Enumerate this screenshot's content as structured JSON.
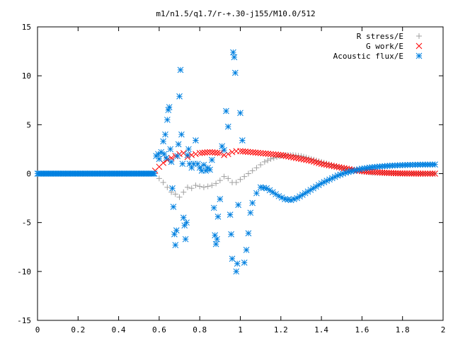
{
  "chart_data": {
    "type": "scatter",
    "title": "m1/n1.5/q1.7/r-+.30-j155/M10.0/512",
    "xlabel": "",
    "ylabel": "",
    "xlim": [
      0,
      2
    ],
    "ylim": [
      -15,
      15
    ],
    "xticks": [
      0,
      0.2,
      0.4,
      0.6,
      0.8,
      1,
      1.2,
      1.4,
      1.6,
      1.8,
      2
    ],
    "xtick_labels": [
      "0",
      "0.2",
      "0.4",
      "0.6",
      "0.8",
      "1",
      "1.2",
      "1.4",
      "1.6",
      "1.8",
      "2"
    ],
    "yticks": [
      -15,
      -10,
      -5,
      0,
      5,
      10,
      15
    ],
    "ytick_labels": [
      "-15",
      "-10",
      "-5",
      "0",
      "5",
      "10",
      "15"
    ],
    "grid": false,
    "legend_position": "top-right",
    "series": [
      {
        "name": "R stress/E",
        "color": "#a0a0a0",
        "marker": "plus",
        "points": [
          [
            0.6,
            -0.5
          ],
          [
            0.62,
            -0.9
          ],
          [
            0.64,
            -1.4
          ],
          [
            0.66,
            -1.9
          ],
          [
            0.68,
            -2.1
          ],
          [
            0.7,
            -2.4
          ],
          [
            0.72,
            -1.9
          ],
          [
            0.74,
            -1.4
          ],
          [
            0.76,
            -1.5
          ],
          [
            0.78,
            -1.2
          ],
          [
            0.8,
            -1.3
          ],
          [
            0.82,
            -1.4
          ],
          [
            0.84,
            -1.3
          ],
          [
            0.86,
            -1.2
          ],
          [
            0.88,
            -1.0
          ],
          [
            0.9,
            -0.7
          ],
          [
            0.92,
            -0.3
          ],
          [
            0.94,
            -0.5
          ],
          [
            0.96,
            -0.9
          ],
          [
            0.98,
            -0.9
          ],
          [
            1.0,
            -0.6
          ],
          [
            1.02,
            -0.3
          ],
          [
            1.04,
            0.0
          ],
          [
            1.06,
            0.3
          ],
          [
            1.08,
            0.6
          ],
          [
            1.1,
            0.9
          ],
          [
            1.12,
            1.2
          ],
          [
            1.15,
            1.5
          ],
          [
            1.18,
            1.7
          ],
          [
            1.22,
            1.9
          ],
          [
            1.26,
            1.9
          ],
          [
            1.3,
            1.8
          ],
          [
            1.35,
            1.5
          ],
          [
            1.4,
            1.2
          ],
          [
            1.45,
            0.9
          ],
          [
            1.5,
            0.6
          ],
          [
            1.55,
            0.4
          ],
          [
            1.6,
            0.2
          ],
          [
            1.65,
            0.1
          ],
          [
            1.7,
            0.05
          ],
          [
            1.8,
            0.0
          ],
          [
            1.9,
            0.0
          ],
          [
            1.96,
            0.0
          ]
        ]
      },
      {
        "name": "G work/E",
        "color": "#ff0000",
        "marker": "cross",
        "points": [
          [
            0.58,
            0.3
          ],
          [
            0.6,
            0.7
          ],
          [
            0.62,
            1.1
          ],
          [
            0.64,
            1.4
          ],
          [
            0.66,
            1.6
          ],
          [
            0.68,
            1.8
          ],
          [
            0.7,
            2.0
          ],
          [
            0.72,
            2.1
          ],
          [
            0.74,
            1.7
          ],
          [
            0.76,
            1.9
          ],
          [
            0.78,
            2.0
          ],
          [
            0.8,
            2.1
          ],
          [
            0.85,
            2.2
          ],
          [
            0.9,
            2.1
          ],
          [
            0.92,
            1.9
          ],
          [
            0.94,
            2.0
          ],
          [
            0.96,
            2.2
          ],
          [
            0.98,
            2.3
          ],
          [
            1.0,
            2.3
          ],
          [
            1.05,
            2.2
          ],
          [
            1.1,
            2.1
          ],
          [
            1.15,
            2.0
          ],
          [
            1.2,
            1.9
          ],
          [
            1.25,
            1.7
          ],
          [
            1.3,
            1.5
          ],
          [
            1.35,
            1.3
          ],
          [
            1.4,
            1.0
          ],
          [
            1.45,
            0.8
          ],
          [
            1.5,
            0.6
          ],
          [
            1.55,
            0.4
          ],
          [
            1.6,
            0.25
          ],
          [
            1.7,
            0.1
          ],
          [
            1.8,
            0.02
          ],
          [
            1.9,
            0.0
          ],
          [
            1.96,
            0.0
          ]
        ]
      },
      {
        "name": "Acoustic flux/E",
        "color": "#0080e0",
        "marker": "star",
        "points": [
          [
            0.585,
            1.8
          ],
          [
            0.595,
            2.0
          ],
          [
            0.6,
            1.5
          ],
          [
            0.61,
            2.2
          ],
          [
            0.62,
            3.3
          ],
          [
            0.625,
            2.0
          ],
          [
            0.63,
            4.0
          ],
          [
            0.635,
            1.6
          ],
          [
            0.64,
            5.5
          ],
          [
            0.645,
            6.5
          ],
          [
            0.65,
            6.8
          ],
          [
            0.655,
            2.5
          ],
          [
            0.66,
            1.2
          ],
          [
            0.665,
            -1.5
          ],
          [
            0.67,
            -3.4
          ],
          [
            0.675,
            -6.2
          ],
          [
            0.68,
            -7.3
          ],
          [
            0.685,
            -5.8
          ],
          [
            0.69,
            1.8
          ],
          [
            0.695,
            3.0
          ],
          [
            0.7,
            7.9
          ],
          [
            0.705,
            10.6
          ],
          [
            0.71,
            4.0
          ],
          [
            0.715,
            1.0
          ],
          [
            0.72,
            -4.5
          ],
          [
            0.725,
            -5.3
          ],
          [
            0.73,
            -6.7
          ],
          [
            0.735,
            -5.0
          ],
          [
            0.74,
            1.9
          ],
          [
            0.745,
            2.5
          ],
          [
            0.75,
            1.0
          ],
          [
            0.76,
            0.6
          ],
          [
            0.77,
            1.0
          ],
          [
            0.78,
            3.4
          ],
          [
            0.79,
            1.0
          ],
          [
            0.8,
            0.6
          ],
          [
            0.81,
            0.3
          ],
          [
            0.82,
            0.9
          ],
          [
            0.83,
            0.3
          ],
          [
            0.84,
            0.6
          ],
          [
            0.85,
            0.4
          ],
          [
            0.86,
            1.4
          ],
          [
            0.87,
            -3.5
          ],
          [
            0.875,
            -6.3
          ],
          [
            0.88,
            -7.2
          ],
          [
            0.885,
            -6.7
          ],
          [
            0.89,
            -4.4
          ],
          [
            0.9,
            -2.6
          ],
          [
            0.91,
            2.8
          ],
          [
            0.92,
            2.4
          ],
          [
            0.93,
            6.4
          ],
          [
            0.94,
            4.8
          ],
          [
            0.95,
            -4.2
          ],
          [
            0.955,
            -6.2
          ],
          [
            0.96,
            -8.7
          ],
          [
            0.965,
            12.4
          ],
          [
            0.97,
            11.9
          ],
          [
            0.975,
            10.3
          ],
          [
            0.98,
            -10.0
          ],
          [
            0.985,
            -9.2
          ],
          [
            0.99,
            -3.2
          ],
          [
            1.0,
            6.2
          ],
          [
            1.01,
            3.4
          ],
          [
            1.02,
            -9.1
          ],
          [
            1.03,
            -7.8
          ],
          [
            1.04,
            -6.1
          ],
          [
            1.05,
            -4.0
          ],
          [
            1.06,
            -3.0
          ],
          [
            1.08,
            -2.0
          ],
          [
            1.1,
            -1.4
          ],
          [
            1.13,
            -1.5
          ],
          [
            1.16,
            -1.9
          ],
          [
            1.19,
            -2.3
          ],
          [
            1.22,
            -2.6
          ],
          [
            1.25,
            -2.7
          ],
          [
            1.28,
            -2.5
          ],
          [
            1.32,
            -2.0
          ],
          [
            1.36,
            -1.5
          ],
          [
            1.4,
            -1.0
          ],
          [
            1.44,
            -0.6
          ],
          [
            1.48,
            -0.2
          ],
          [
            1.52,
            0.1
          ],
          [
            1.56,
            0.3
          ],
          [
            1.6,
            0.5
          ],
          [
            1.65,
            0.65
          ],
          [
            1.7,
            0.75
          ],
          [
            1.75,
            0.82
          ],
          [
            1.8,
            0.87
          ],
          [
            1.85,
            0.9
          ],
          [
            1.9,
            0.92
          ],
          [
            1.96,
            0.93
          ]
        ]
      }
    ]
  }
}
